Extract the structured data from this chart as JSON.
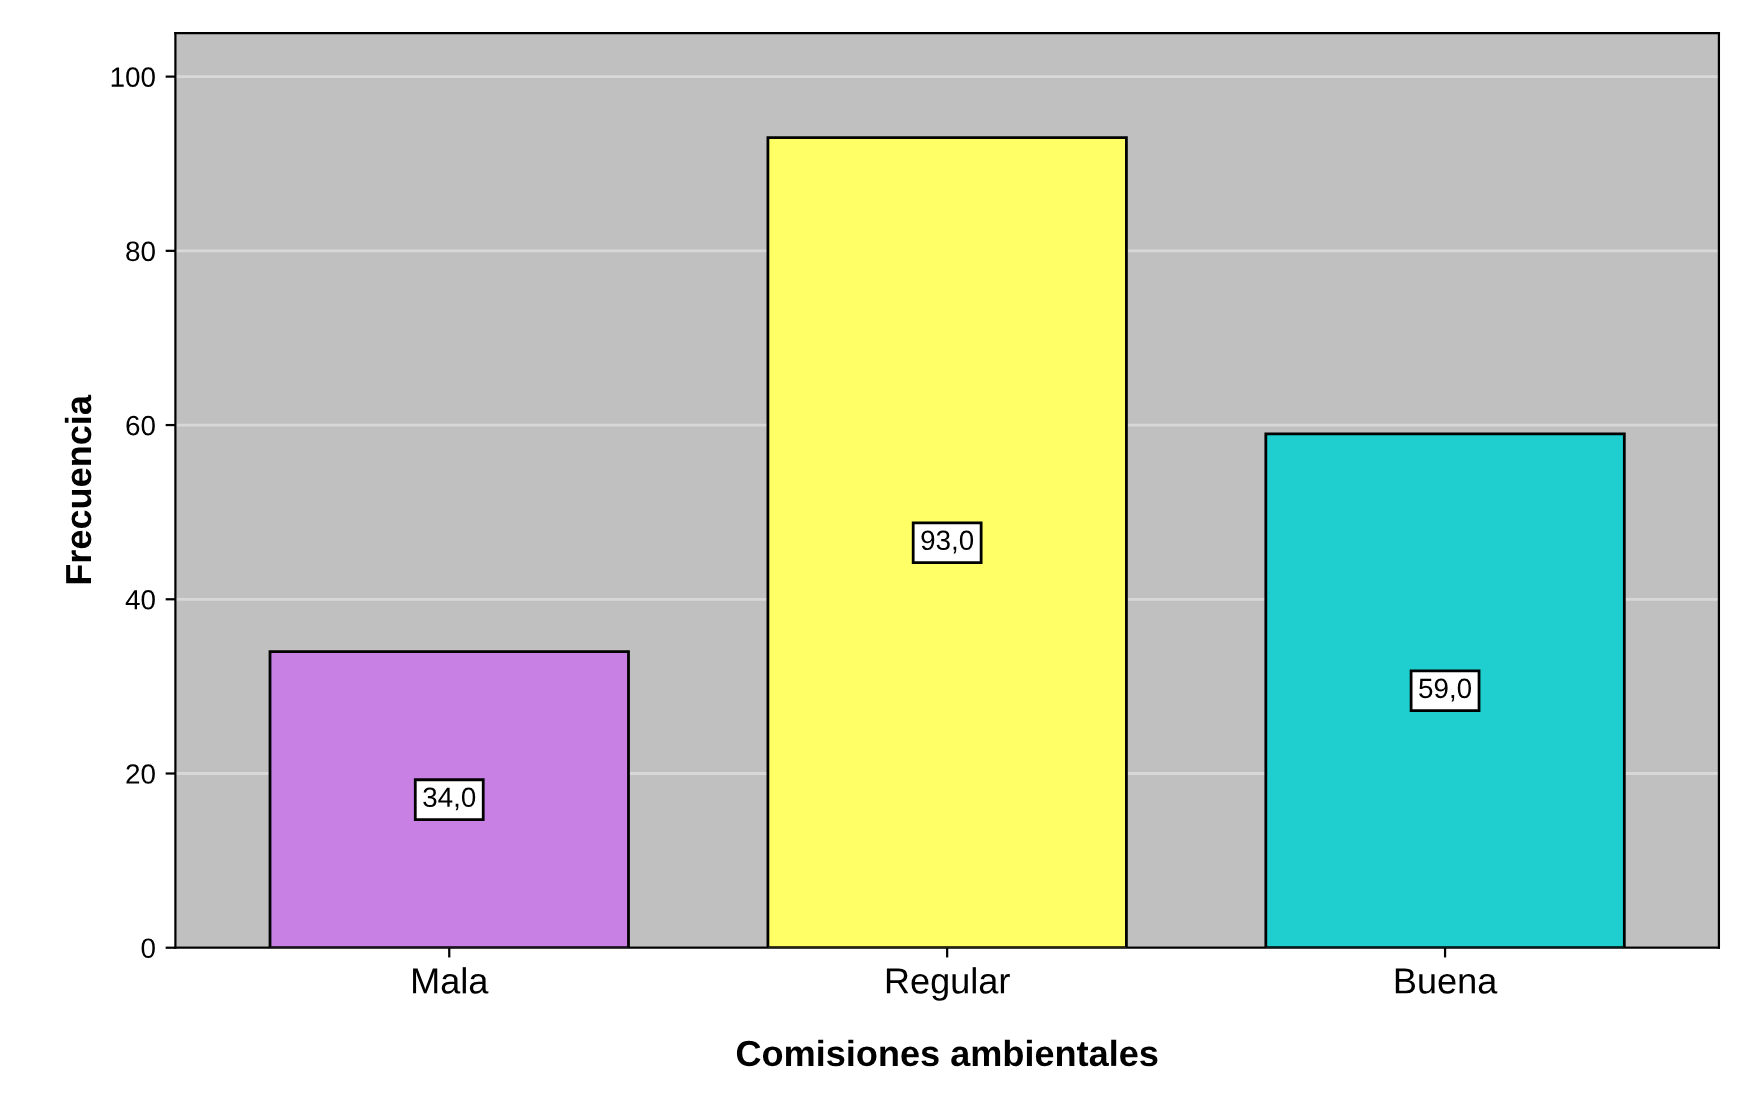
{
  "chart_data": {
    "type": "bar",
    "xlabel": "Comisiones ambientales",
    "ylabel": "Frecuencia",
    "categories": [
      "Mala",
      "Regular",
      "Buena"
    ],
    "values": [
      34,
      93,
      59
    ],
    "value_labels": [
      "34,0",
      "93,0",
      "59,0"
    ],
    "colors": [
      "#c880e4",
      "#ffff66",
      "#1fcfcf"
    ],
    "ylim": [
      0,
      105
    ],
    "yticks": [
      0,
      20,
      40,
      60,
      80,
      100
    ],
    "grid": "y"
  }
}
